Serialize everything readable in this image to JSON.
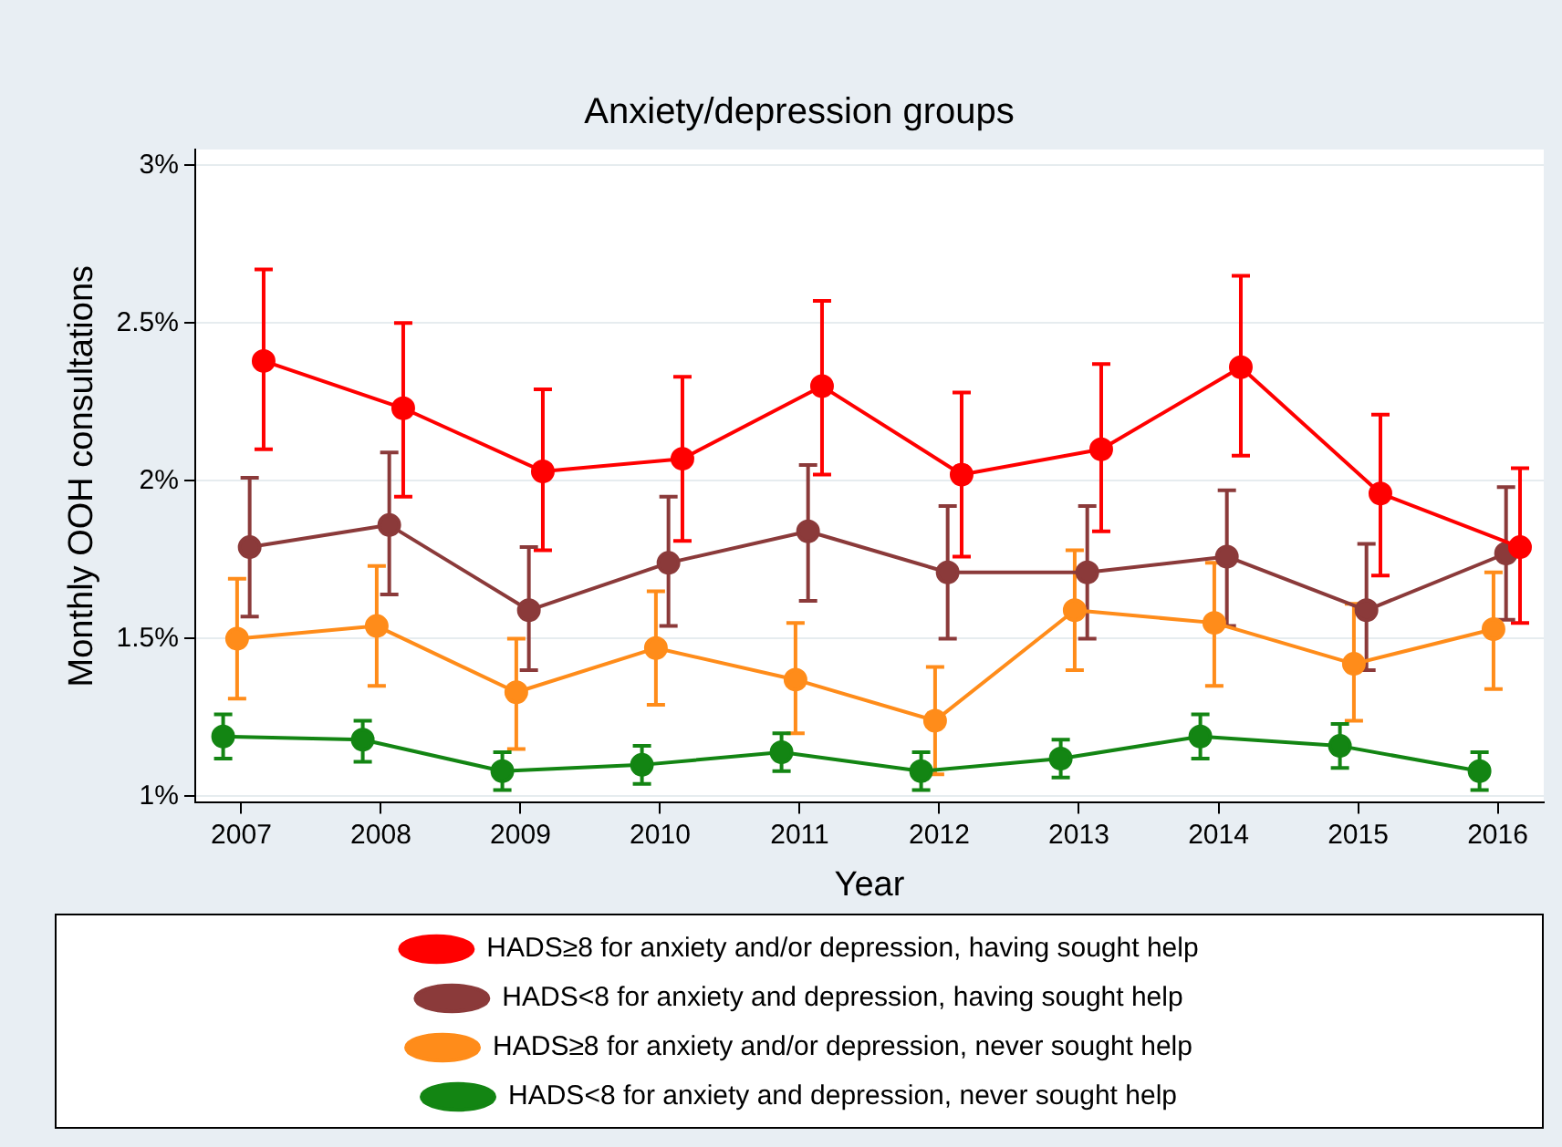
{
  "chart_data": {
    "type": "line",
    "title": "Anxiety/depression groups",
    "xlabel": "Year",
    "ylabel": "Monthly OOH consultations",
    "xlim": [
      2006.67,
      2016.33
    ],
    "xticks": [
      2007,
      2008,
      2009,
      2010,
      2011,
      2012,
      2013,
      2014,
      2015,
      2016
    ],
    "ylim": [
      0.98,
      3.05
    ],
    "yticks": [
      {
        "value": 1,
        "label": "1%"
      },
      {
        "value": 1.5,
        "label": "1.5%"
      },
      {
        "value": 2,
        "label": "2%"
      },
      {
        "value": 2.5,
        "label": "2.5%"
      },
      {
        "value": 3,
        "label": "3%"
      }
    ],
    "grid": "y",
    "legend": "bottom",
    "marker": "circle",
    "line_style": "solid",
    "series": [
      {
        "name": "HADS≥8 for anxiety and/or depression, having sought help",
        "color": "#ff0000",
        "x": [
          2007.16,
          2008.16,
          2009.16,
          2010.16,
          2011.16,
          2012.16,
          2013.16,
          2014.16,
          2015.16,
          2016.16
        ],
        "values": [
          2.38,
          2.23,
          2.03,
          2.07,
          2.3,
          2.02,
          2.1,
          2.36,
          1.96,
          1.79
        ],
        "errors": [
          [
            2.1,
            2.67
          ],
          [
            1.95,
            2.5
          ],
          [
            1.78,
            2.29
          ],
          [
            1.81,
            2.33
          ],
          [
            2.02,
            2.57
          ],
          [
            1.76,
            2.28
          ],
          [
            1.84,
            2.37
          ],
          [
            2.08,
            2.65
          ],
          [
            1.7,
            2.21
          ],
          [
            1.55,
            2.04
          ]
        ]
      },
      {
        "name": "HADS<8 for anxiety and depression, having sought help",
        "color": "#8b3a3a",
        "x": [
          2007.06,
          2008.06,
          2009.06,
          2010.06,
          2011.06,
          2012.06,
          2013.06,
          2014.06,
          2015.06,
          2016.06
        ],
        "values": [
          1.79,
          1.86,
          1.59,
          1.74,
          1.84,
          1.71,
          1.71,
          1.76,
          1.59,
          1.77
        ],
        "errors": [
          [
            1.57,
            2.01
          ],
          [
            1.64,
            2.09
          ],
          [
            1.4,
            1.79
          ],
          [
            1.54,
            1.95
          ],
          [
            1.62,
            2.05
          ],
          [
            1.5,
            1.92
          ],
          [
            1.5,
            1.92
          ],
          [
            1.54,
            1.97
          ],
          [
            1.4,
            1.8
          ],
          [
            1.56,
            1.98
          ]
        ]
      },
      {
        "name": "HADS≥8 for anxiety and/or depression, never sought help",
        "color": "#ff8c1a",
        "x": [
          2006.97,
          2007.97,
          2008.97,
          2009.97,
          2010.97,
          2011.97,
          2012.97,
          2013.97,
          2014.97,
          2015.97
        ],
        "values": [
          1.5,
          1.54,
          1.33,
          1.47,
          1.37,
          1.24,
          1.59,
          1.55,
          1.42,
          1.53
        ],
        "errors": [
          [
            1.31,
            1.69
          ],
          [
            1.35,
            1.73
          ],
          [
            1.15,
            1.5
          ],
          [
            1.29,
            1.65
          ],
          [
            1.2,
            1.55
          ],
          [
            1.07,
            1.41
          ],
          [
            1.4,
            1.78
          ],
          [
            1.35,
            1.74
          ],
          [
            1.24,
            1.61
          ],
          [
            1.34,
            1.71
          ]
        ]
      },
      {
        "name": "HADS<8 for anxiety and depression, never sought help",
        "color": "#138513",
        "x": [
          2006.87,
          2007.87,
          2008.87,
          2009.87,
          2010.87,
          2011.87,
          2012.87,
          2013.87,
          2014.87,
          2015.87
        ],
        "values": [
          1.19,
          1.18,
          1.08,
          1.1,
          1.14,
          1.08,
          1.12,
          1.19,
          1.16,
          1.08
        ],
        "errors": [
          [
            1.12,
            1.26
          ],
          [
            1.11,
            1.24
          ],
          [
            1.02,
            1.14
          ],
          [
            1.04,
            1.16
          ],
          [
            1.08,
            1.2
          ],
          [
            1.02,
            1.14
          ],
          [
            1.06,
            1.18
          ],
          [
            1.12,
            1.26
          ],
          [
            1.09,
            1.23
          ],
          [
            1.02,
            1.14
          ]
        ]
      }
    ]
  }
}
